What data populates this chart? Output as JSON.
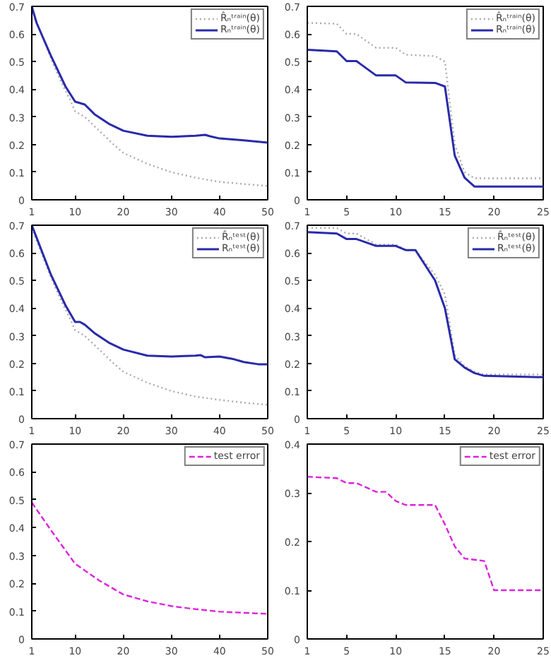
{
  "chart_data": [
    {
      "type": "line",
      "xlim": [
        1,
        50
      ],
      "xticks": [
        1,
        10,
        20,
        30,
        40,
        50
      ],
      "ylim": [
        0,
        0.7
      ],
      "yticks": [
        0,
        0.1,
        0.2,
        0.3,
        0.4,
        0.5,
        0.6,
        0.7
      ],
      "legend": "top right",
      "series": [
        {
          "name": "R̂ₙᵗʳᵃⁱⁿ(θ)",
          "color": "#aaaaaa",
          "line_style": "dotted",
          "x": [
            1,
            3,
            5,
            7,
            9,
            10,
            12,
            15,
            18,
            20,
            25,
            30,
            35,
            40,
            45,
            50
          ],
          "values": [
            0.69,
            0.6,
            0.51,
            0.43,
            0.36,
            0.32,
            0.3,
            0.25,
            0.2,
            0.17,
            0.13,
            0.1,
            0.08,
            0.065,
            0.057,
            0.05
          ]
        },
        {
          "name": "Rₙᵗʳᵃⁱⁿ(θ)",
          "color": "#2a2aaa",
          "line_style": "solid",
          "x": [
            1,
            2,
            5,
            8,
            10,
            11,
            12,
            14,
            17,
            20,
            25,
            30,
            35,
            37,
            38,
            40,
            45,
            50
          ],
          "values": [
            0.7,
            0.64,
            0.52,
            0.41,
            0.355,
            0.35,
            0.345,
            0.31,
            0.275,
            0.25,
            0.232,
            0.228,
            0.232,
            0.235,
            0.23,
            0.222,
            0.215,
            0.207
          ]
        }
      ]
    },
    {
      "type": "line",
      "xlim": [
        1,
        25
      ],
      "xticks": [
        1,
        5,
        10,
        15,
        20,
        25
      ],
      "ylim": [
        0,
        0.7
      ],
      "yticks": [
        0,
        0.1,
        0.2,
        0.3,
        0.4,
        0.5,
        0.6,
        0.7
      ],
      "legend": "top right",
      "series": [
        {
          "name": "R̂ₙᵗʳᵃⁱⁿ(θ)",
          "color": "#aaaaaa",
          "line_style": "dotted",
          "x": [
            1,
            4,
            5,
            6,
            8,
            10,
            11,
            14,
            15,
            16,
            17,
            18,
            25
          ],
          "values": [
            0.64,
            0.637,
            0.6,
            0.6,
            0.55,
            0.55,
            0.525,
            0.52,
            0.5,
            0.2,
            0.1,
            0.078,
            0.078
          ]
        },
        {
          "name": "Rₙᵗʳᵃⁱⁿ(θ)",
          "color": "#2a2aaa",
          "line_style": "solid",
          "x": [
            1,
            4,
            5,
            6,
            8,
            10,
            11,
            14,
            15,
            16,
            17,
            18,
            25
          ],
          "values": [
            0.543,
            0.537,
            0.502,
            0.502,
            0.45,
            0.45,
            0.425,
            0.423,
            0.41,
            0.16,
            0.08,
            0.048,
            0.048
          ]
        }
      ]
    },
    {
      "type": "line",
      "xlim": [
        1,
        50
      ],
      "xticks": [
        1,
        10,
        20,
        30,
        40,
        50
      ],
      "ylim": [
        0,
        0.7
      ],
      "yticks": [
        0,
        0.1,
        0.2,
        0.3,
        0.4,
        0.5,
        0.6,
        0.7
      ],
      "legend": "top right",
      "series": [
        {
          "name": "R̂ₙᵗᵉˢᵗ(θ)",
          "color": "#aaaaaa",
          "line_style": "dotted",
          "x": [
            1,
            3,
            5,
            7,
            9,
            10,
            12,
            15,
            18,
            20,
            25,
            30,
            35,
            40,
            45,
            50
          ],
          "values": [
            0.69,
            0.6,
            0.51,
            0.43,
            0.36,
            0.32,
            0.3,
            0.25,
            0.2,
            0.17,
            0.13,
            0.1,
            0.08,
            0.068,
            0.058,
            0.05
          ]
        },
        {
          "name": "Rₙᵗᵉˢᵗ(θ)",
          "color": "#2a2aaa",
          "line_style": "solid",
          "x": [
            1,
            5,
            8,
            10,
            11,
            12,
            14,
            17,
            20,
            25,
            30,
            35,
            36,
            37,
            40,
            43,
            45,
            48,
            50
          ],
          "values": [
            0.7,
            0.52,
            0.41,
            0.35,
            0.35,
            0.34,
            0.31,
            0.275,
            0.25,
            0.228,
            0.225,
            0.228,
            0.23,
            0.222,
            0.225,
            0.215,
            0.205,
            0.197,
            0.197
          ]
        }
      ]
    },
    {
      "type": "line",
      "xlim": [
        1,
        25
      ],
      "xticks": [
        1,
        5,
        10,
        15,
        20,
        25
      ],
      "ylim": [
        0,
        0.7
      ],
      "yticks": [
        0,
        0.1,
        0.2,
        0.3,
        0.4,
        0.5,
        0.6,
        0.7
      ],
      "legend": "top right",
      "series": [
        {
          "name": "R̂ₙᵗᵉˢᵗ(θ)",
          "color": "#aaaaaa",
          "line_style": "dotted",
          "x": [
            1,
            4,
            5,
            6,
            8,
            10,
            11,
            12,
            14,
            15,
            16,
            17,
            18,
            19,
            25
          ],
          "values": [
            0.69,
            0.69,
            0.67,
            0.67,
            0.63,
            0.63,
            0.61,
            0.61,
            0.52,
            0.45,
            0.23,
            0.19,
            0.17,
            0.16,
            0.16
          ]
        },
        {
          "name": "Rₙᵗᵉˢᵗ(θ)",
          "color": "#2a2aaa",
          "line_style": "solid",
          "x": [
            1,
            4,
            5,
            6,
            8,
            10,
            11,
            12,
            14,
            15,
            16,
            17,
            18,
            19,
            25
          ],
          "values": [
            0.675,
            0.67,
            0.65,
            0.65,
            0.625,
            0.625,
            0.61,
            0.61,
            0.5,
            0.4,
            0.215,
            0.185,
            0.165,
            0.155,
            0.15
          ]
        }
      ]
    },
    {
      "type": "line",
      "xlim": [
        1,
        50
      ],
      "xticks": [
        1,
        10,
        20,
        30,
        40,
        50
      ],
      "ylim": [
        0,
        0.7
      ],
      "yticks": [
        0,
        0.1,
        0.2,
        0.3,
        0.4,
        0.5,
        0.6,
        0.7
      ],
      "legend": "top right",
      "series": [
        {
          "name": "test error",
          "color": "#dd22dd",
          "line_style": "dashed",
          "x": [
            1,
            5,
            10,
            15,
            20,
            25,
            30,
            35,
            40,
            45,
            50
          ],
          "values": [
            0.49,
            0.39,
            0.27,
            0.21,
            0.16,
            0.135,
            0.118,
            0.107,
            0.098,
            0.094,
            0.09
          ]
        }
      ]
    },
    {
      "type": "line",
      "xlim": [
        1,
        25
      ],
      "xticks": [
        1,
        5,
        10,
        15,
        20,
        25
      ],
      "ylim": [
        0,
        0.4
      ],
      "yticks": [
        0,
        0.1,
        0.2,
        0.3,
        0.4
      ],
      "legend": "top right",
      "series": [
        {
          "name": "test error",
          "color": "#dd22dd",
          "line_style": "dashed",
          "x": [
            1,
            4,
            5,
            6,
            8,
            9,
            10,
            11,
            14,
            15,
            16,
            17,
            19,
            20,
            25
          ],
          "values": [
            0.333,
            0.33,
            0.32,
            0.32,
            0.302,
            0.302,
            0.283,
            0.275,
            0.275,
            0.235,
            0.19,
            0.165,
            0.16,
            0.1,
            0.1
          ]
        }
      ]
    }
  ]
}
